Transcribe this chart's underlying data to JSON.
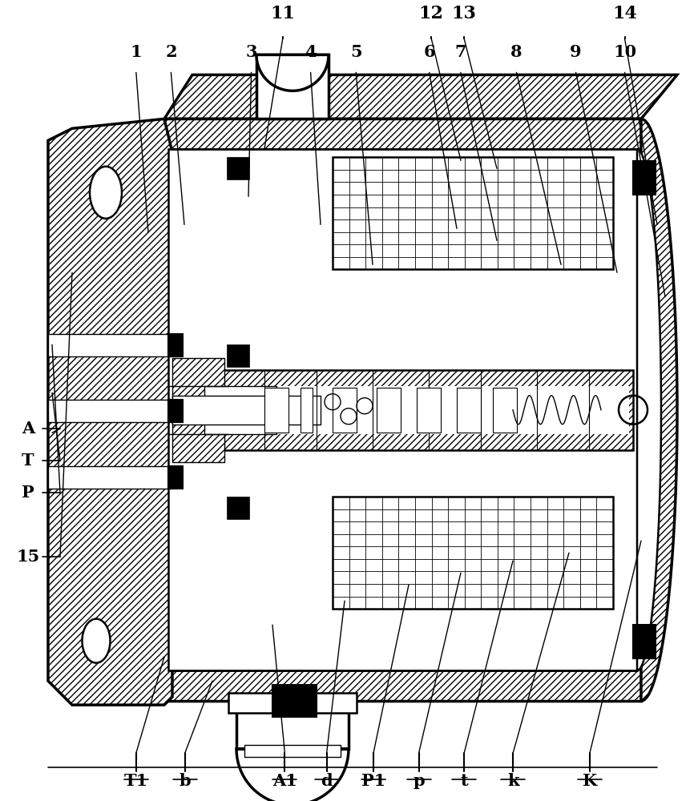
{
  "bg_color": "#ffffff",
  "line_color": "#000000",
  "top_row1_labels": [
    [
      "11",
      0.405
    ],
    [
      "12",
      0.618
    ],
    [
      "13",
      0.665
    ],
    [
      "14",
      0.895
    ]
  ],
  "top_row2_labels": [
    [
      "1",
      0.195
    ],
    [
      "2",
      0.245
    ],
    [
      "3",
      0.36
    ],
    [
      "4",
      0.445
    ],
    [
      "5",
      0.51
    ],
    [
      "6",
      0.615
    ],
    [
      "7",
      0.66
    ],
    [
      "8",
      0.74
    ],
    [
      "9",
      0.825
    ],
    [
      "10",
      0.895
    ]
  ],
  "bottom_labels": [
    [
      "T1",
      0.195
    ],
    [
      "b",
      0.265
    ],
    [
      "A1",
      0.408
    ],
    [
      "d",
      0.468
    ],
    [
      "P1",
      0.535
    ],
    [
      "p",
      0.6
    ],
    [
      "t",
      0.665
    ],
    [
      "k",
      0.735
    ],
    [
      "K",
      0.845
    ]
  ],
  "left_labels": [
    [
      "15",
      0.695
    ],
    [
      "P",
      0.615
    ],
    [
      "T",
      0.575
    ],
    [
      "A",
      0.535
    ]
  ],
  "font_size": 15
}
